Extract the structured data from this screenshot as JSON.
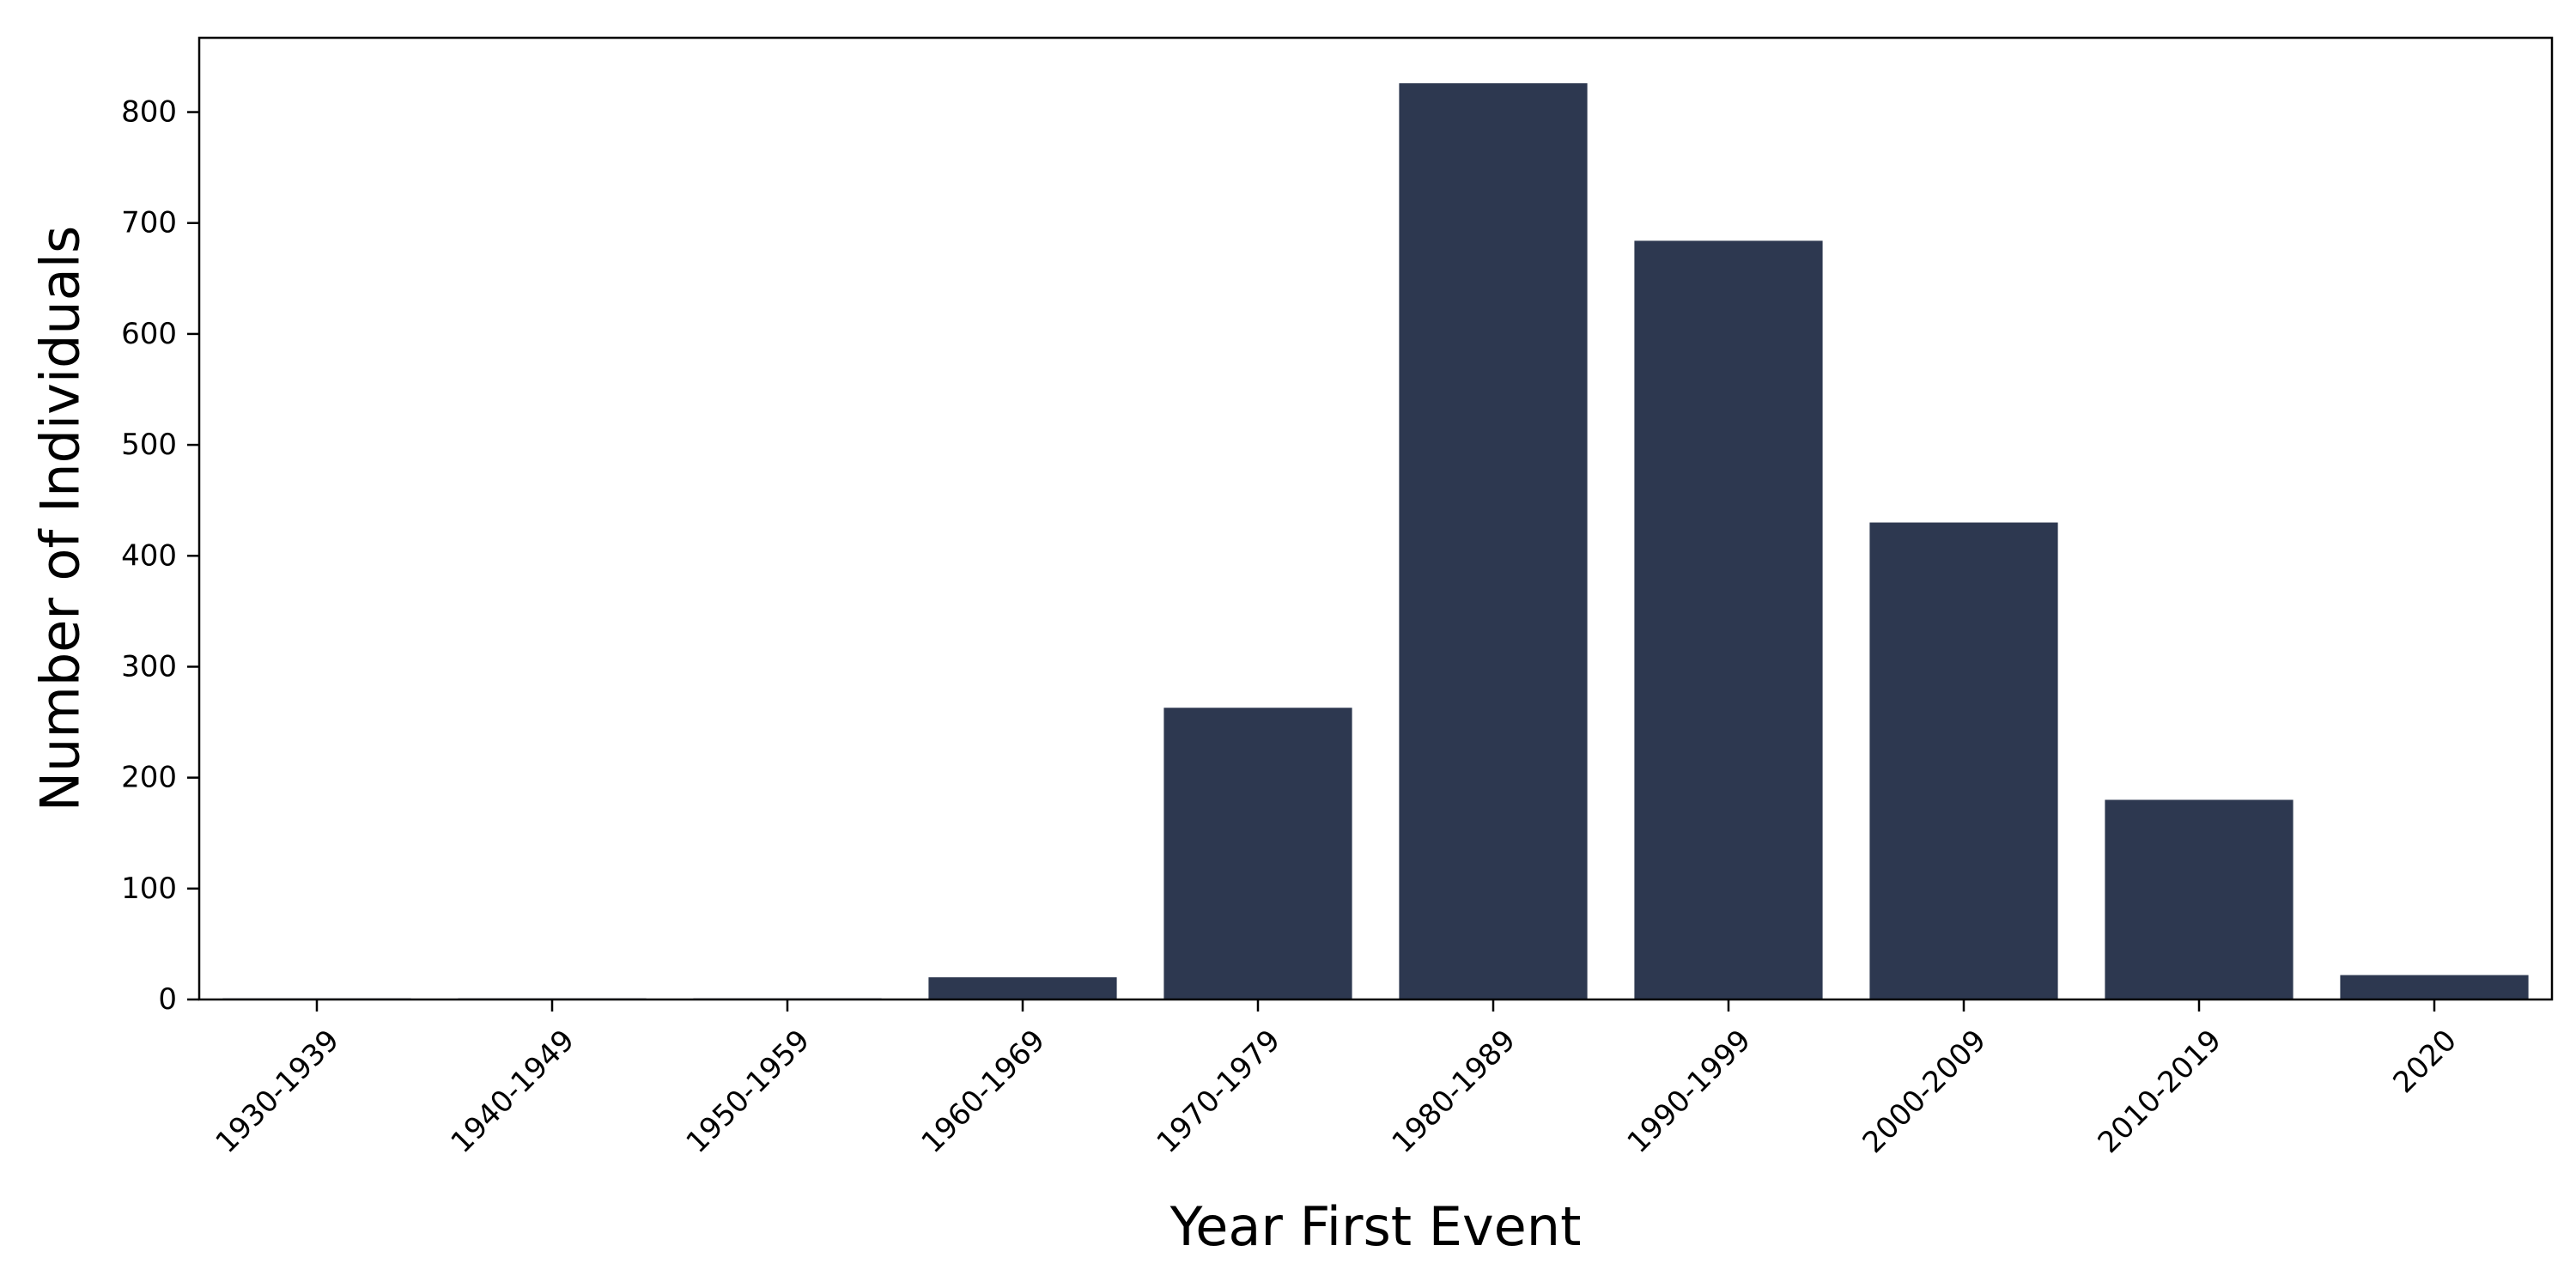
{
  "chart_data": {
    "type": "bar",
    "title": "",
    "xlabel": "Year First Event",
    "ylabel": "Number of Individuals",
    "categories": [
      "1930-1939",
      "1940-1949",
      "1950-1959",
      "1960-1969",
      "1970-1979",
      "1980-1989",
      "1990-1999",
      "2000-2009",
      "2010-2019",
      "2020"
    ],
    "values": [
      1,
      1,
      1,
      20,
      263,
      826,
      684,
      430,
      180,
      22
    ],
    "ylim": [
      0,
      867
    ],
    "yticks": [
      0,
      100,
      200,
      300,
      400,
      500,
      600,
      700,
      800
    ],
    "grid": false,
    "legend": "none",
    "bar_color": "#2d3850"
  }
}
